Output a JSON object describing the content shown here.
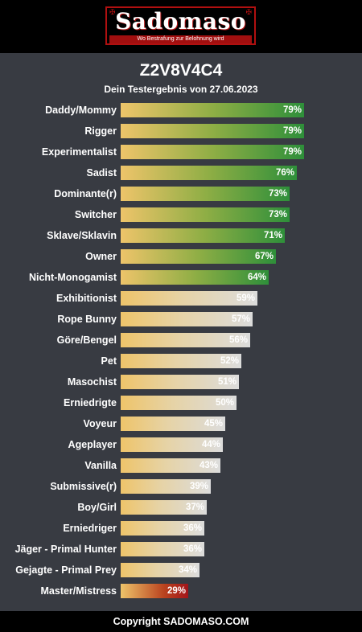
{
  "header": {
    "logo_text": "Sadomaso",
    "tagline": "Wo Bestrafung zur Belohnung wird"
  },
  "result": {
    "title": "Z2V8V4C4",
    "subtitle": "Dein Testergebnis von 27.06.2023"
  },
  "colors": {
    "panel": "#383b42",
    "high": "#2e8f3a",
    "mid": "#dcdcdc",
    "low": "#a2151a",
    "start": "#eec46a"
  },
  "chart_data": {
    "type": "bar",
    "orientation": "horizontal",
    "categories": [
      "Daddy/Mommy",
      "Rigger",
      "Experimentalist",
      "Sadist",
      "Dominante(r)",
      "Switcher",
      "Sklave/Sklavin",
      "Owner",
      "Nicht-Monogamist",
      "Exhibitionist",
      "Rope Bunny",
      "Göre/Bengel",
      "Pet",
      "Masochist",
      "Erniedrigte",
      "Voyeur",
      "Ageplayer",
      "Vanilla",
      "Submissive(r)",
      "Boy/Girl",
      "Erniedriger",
      "Jäger - Primal Hunter",
      "Gejagte - Primal Prey",
      "Master/Mistress"
    ],
    "values": [
      79,
      79,
      79,
      76,
      73,
      73,
      71,
      67,
      64,
      59,
      57,
      56,
      52,
      51,
      50,
      45,
      44,
      43,
      39,
      37,
      36,
      36,
      34,
      29
    ],
    "value_labels": [
      "79%",
      "79%",
      "79%",
      "76%",
      "73%",
      "73%",
      "71%",
      "67%",
      "64%",
      "59%",
      "57%",
      "56%",
      "52%",
      "51%",
      "50%",
      "45%",
      "44%",
      "43%",
      "39%",
      "37%",
      "36%",
      "36%",
      "34%",
      "29%"
    ],
    "color_bands": [
      "high",
      "high",
      "high",
      "high",
      "high",
      "high",
      "high",
      "high",
      "high",
      "mid",
      "mid",
      "mid",
      "mid",
      "mid",
      "mid",
      "mid",
      "mid",
      "mid",
      "mid",
      "mid",
      "mid",
      "mid",
      "mid",
      "low"
    ],
    "xlim": [
      0,
      100
    ],
    "grid": false,
    "legend": "none"
  },
  "footer": {
    "copyright": "Copyright SADOMASO.COM"
  }
}
